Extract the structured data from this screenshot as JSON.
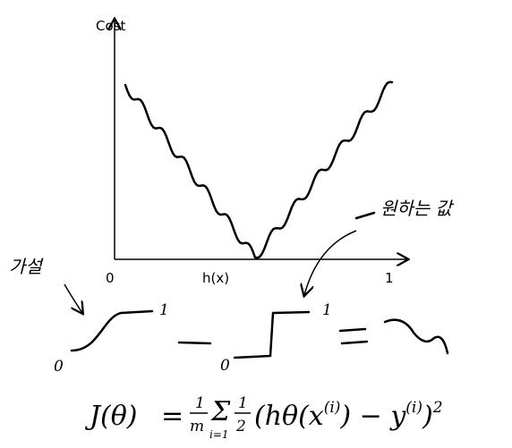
{
  "axis": {
    "y_label": "Cost",
    "x_label": "h(x)",
    "x_start": "0",
    "x_end": "1"
  },
  "annotations": {
    "hypothesis": "가설",
    "target": "원하는 값"
  },
  "curve_labels": {
    "sigmoid_top": "1",
    "sigmoid_bottom": "0",
    "step_bottom": "0",
    "step_top": "1"
  },
  "formula": {
    "lhs": "J(θ)",
    "equals": "=",
    "frac1_num": "1",
    "frac1_den": "m",
    "sum": "Σ",
    "sum_lower": "i=1",
    "frac2_num": "1",
    "frac2_den": "2",
    "body": "(hθ(x",
    "sup1": "(i)",
    "minus": ") − y",
    "sup2": "(i)",
    "close": ")",
    "power": "2"
  }
}
